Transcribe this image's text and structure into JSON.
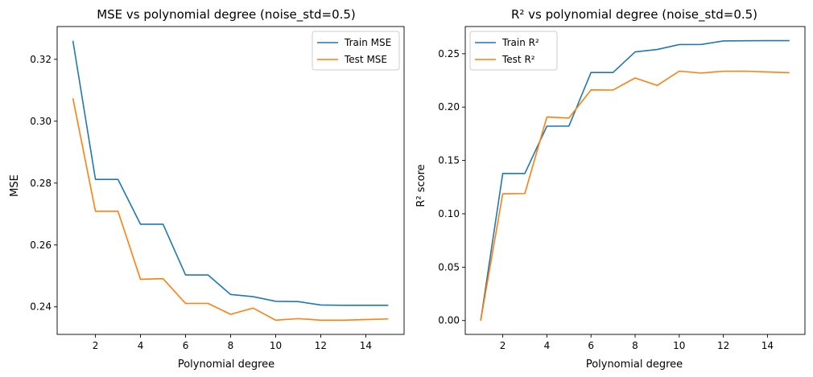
{
  "chart_data": [
    {
      "type": "line",
      "title": "MSE vs polynomial degree (noise_std=0.5)",
      "xlabel": "Polynomial degree",
      "ylabel": "MSE",
      "x": [
        1,
        2,
        3,
        4,
        5,
        6,
        7,
        8,
        9,
        10,
        11,
        12,
        13,
        14,
        15
      ],
      "xlim": [
        0.3,
        15.7
      ],
      "ylim": [
        0.2311,
        0.3306
      ],
      "xticks": [
        2,
        4,
        6,
        8,
        10,
        12,
        14
      ],
      "yticks": [
        0.24,
        0.26,
        0.28,
        0.3,
        0.32
      ],
      "ytick_labels": [
        "0.24",
        "0.26",
        "0.28",
        "0.30",
        "0.32"
      ],
      "legend_position": "top-right",
      "grid": false,
      "series": [
        {
          "name": "Train MSE",
          "color": "#1f77b4",
          "values": [
            0.326,
            0.2812,
            0.2812,
            0.2667,
            0.2667,
            0.2503,
            0.2503,
            0.244,
            0.2433,
            0.2418,
            0.2417,
            0.2406,
            0.2405,
            0.2405,
            0.2405
          ]
        },
        {
          "name": "Test MSE",
          "color": "#ff7f0e",
          "values": [
            0.3074,
            0.2709,
            0.2709,
            0.2489,
            0.2491,
            0.2411,
            0.2411,
            0.2376,
            0.2396,
            0.2357,
            0.2362,
            0.2357,
            0.2357,
            0.2359,
            0.2361
          ]
        }
      ]
    },
    {
      "type": "line",
      "title": "R² vs polynomial degree (noise_std=0.5)",
      "xlabel": "Polynomial degree",
      "ylabel": "R² score",
      "x": [
        1,
        2,
        3,
        4,
        5,
        6,
        7,
        8,
        9,
        10,
        11,
        12,
        13,
        14,
        15
      ],
      "xlim": [
        0.3,
        15.7
      ],
      "ylim": [
        -0.013,
        0.2755
      ],
      "xticks": [
        2,
        4,
        6,
        8,
        10,
        12,
        14
      ],
      "yticks": [
        0.0,
        0.05,
        0.1,
        0.15,
        0.2,
        0.25
      ],
      "ytick_labels": [
        "0.00",
        "0.05",
        "0.10",
        "0.15",
        "0.20",
        "0.25"
      ],
      "legend_position": "top-left",
      "grid": false,
      "series": [
        {
          "name": "Train R²",
          "color": "#1f77b4",
          "values": [
            0.0,
            0.1378,
            0.1378,
            0.1821,
            0.1822,
            0.2324,
            0.2324,
            0.2517,
            0.254,
            0.2586,
            0.2587,
            0.262,
            0.2622,
            0.2623,
            0.2623
          ]
        },
        {
          "name": "Test R²",
          "color": "#ff7f0e",
          "values": [
            0.0,
            0.1188,
            0.119,
            0.1907,
            0.1898,
            0.2161,
            0.216,
            0.2273,
            0.2203,
            0.2337,
            0.2319,
            0.2336,
            0.2337,
            0.2329,
            0.2322
          ]
        }
      ]
    }
  ]
}
